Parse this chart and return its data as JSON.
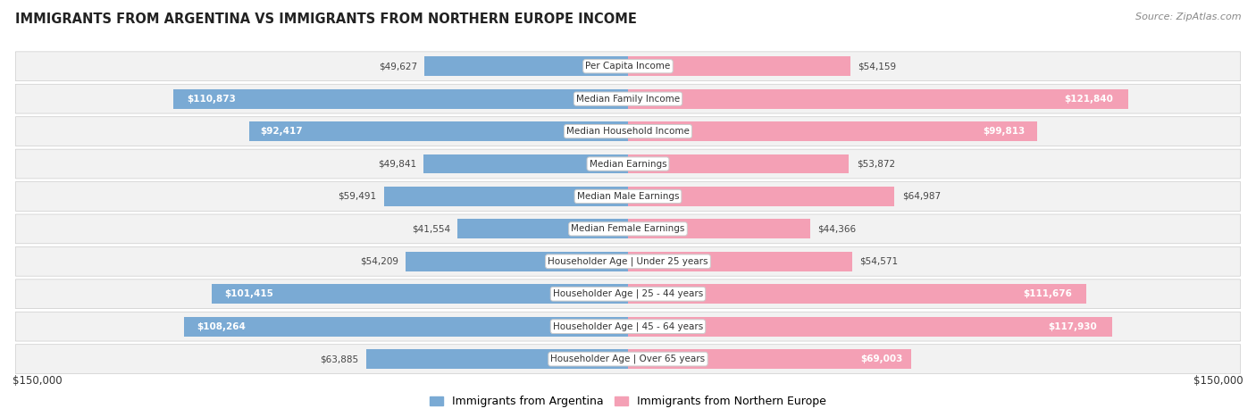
{
  "title": "IMMIGRANTS FROM ARGENTINA VS IMMIGRANTS FROM NORTHERN EUROPE INCOME",
  "source": "Source: ZipAtlas.com",
  "categories": [
    "Per Capita Income",
    "Median Family Income",
    "Median Household Income",
    "Median Earnings",
    "Median Male Earnings",
    "Median Female Earnings",
    "Householder Age | Under 25 years",
    "Householder Age | 25 - 44 years",
    "Householder Age | 45 - 64 years",
    "Householder Age | Over 65 years"
  ],
  "argentina_values": [
    49627,
    110873,
    92417,
    49841,
    59491,
    41554,
    54209,
    101415,
    108264,
    63885
  ],
  "northern_europe_values": [
    54159,
    121840,
    99813,
    53872,
    64987,
    44366,
    54571,
    111676,
    117930,
    69003
  ],
  "argentina_labels": [
    "$49,627",
    "$110,873",
    "$92,417",
    "$49,841",
    "$59,491",
    "$41,554",
    "$54,209",
    "$101,415",
    "$108,264",
    "$63,885"
  ],
  "northern_europe_labels": [
    "$54,159",
    "$121,840",
    "$99,813",
    "$53,872",
    "$64,987",
    "$44,366",
    "$54,571",
    "$111,676",
    "$117,930",
    "$69,003"
  ],
  "argentina_color": "#7aaad4",
  "northern_europe_color": "#f4a0b5",
  "max_value": 150000,
  "legend_argentina": "Immigrants from Argentina",
  "legend_northern_europe": "Immigrants from Northern Europe",
  "xlabel_left": "$150,000",
  "xlabel_right": "$150,000",
  "arg_label_threshold": 65000,
  "ne_label_threshold": 65000
}
